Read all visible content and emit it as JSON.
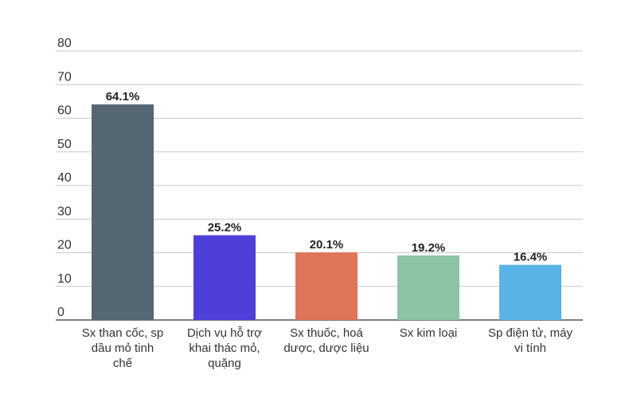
{
  "chart_data": {
    "type": "bar",
    "title": "",
    "xlabel": "",
    "ylabel": "",
    "ylim": [
      0,
      80
    ],
    "yticks": [
      0,
      10,
      20,
      30,
      40,
      50,
      60,
      70,
      80
    ],
    "grid": true,
    "legend": "none",
    "categories": [
      [
        "Sx than cốc, sp",
        "dầu mỏ tinh",
        "chế"
      ],
      [
        "Dịch vụ hỗ trợ",
        "khai thác mỏ,",
        "quặng"
      ],
      [
        "Sx thuốc, hoá",
        "dược, dược liệu"
      ],
      [
        "Sx kim loại"
      ],
      [
        "Sp điện tử, máy",
        "vi tính"
      ]
    ],
    "values": [
      64.1,
      25.2,
      20.1,
      19.2,
      16.4
    ],
    "data_labels": [
      "64.1%",
      "25.2%",
      "20.1%",
      "19.2%",
      "16.4%"
    ],
    "colors": [
      "#546772",
      "#4f3fd9",
      "#e07458",
      "#8dc4a4",
      "#5ab3e6"
    ]
  }
}
